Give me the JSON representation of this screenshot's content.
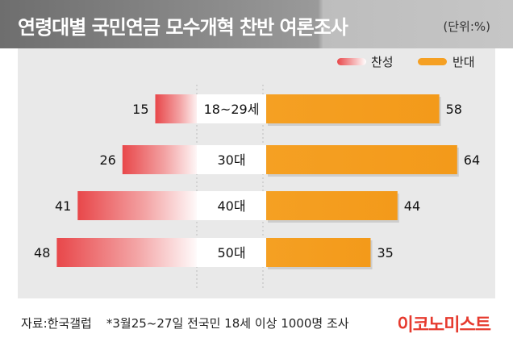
{
  "header": {
    "title": "연령대별 국민연금 모수개혁 찬반 여론조사",
    "unit": "(단위:%)"
  },
  "footer": {
    "source": "자료:한국갤럽",
    "note": "*3월25~27일 전국민 18세 이상 1000명 조사",
    "brand": "이코노미스트"
  },
  "colors": {
    "support": "#e8474a",
    "oppose": "#f5a023",
    "center_box": "#ffffff",
    "panel": "#e9e9e9"
  },
  "chart_data": {
    "type": "bar",
    "title": "연령대별 국민연금 모수개혁 찬반 여론조사",
    "unit": "(단위:%)",
    "legend_position": "top-right",
    "categories": [
      "18~29세",
      "30대",
      "40대",
      "50대"
    ],
    "series": [
      {
        "name": "찬성",
        "values": [
          15,
          26,
          41,
          48
        ]
      },
      {
        "name": "반대",
        "values": [
          58,
          64,
          44,
          35
        ]
      }
    ]
  }
}
